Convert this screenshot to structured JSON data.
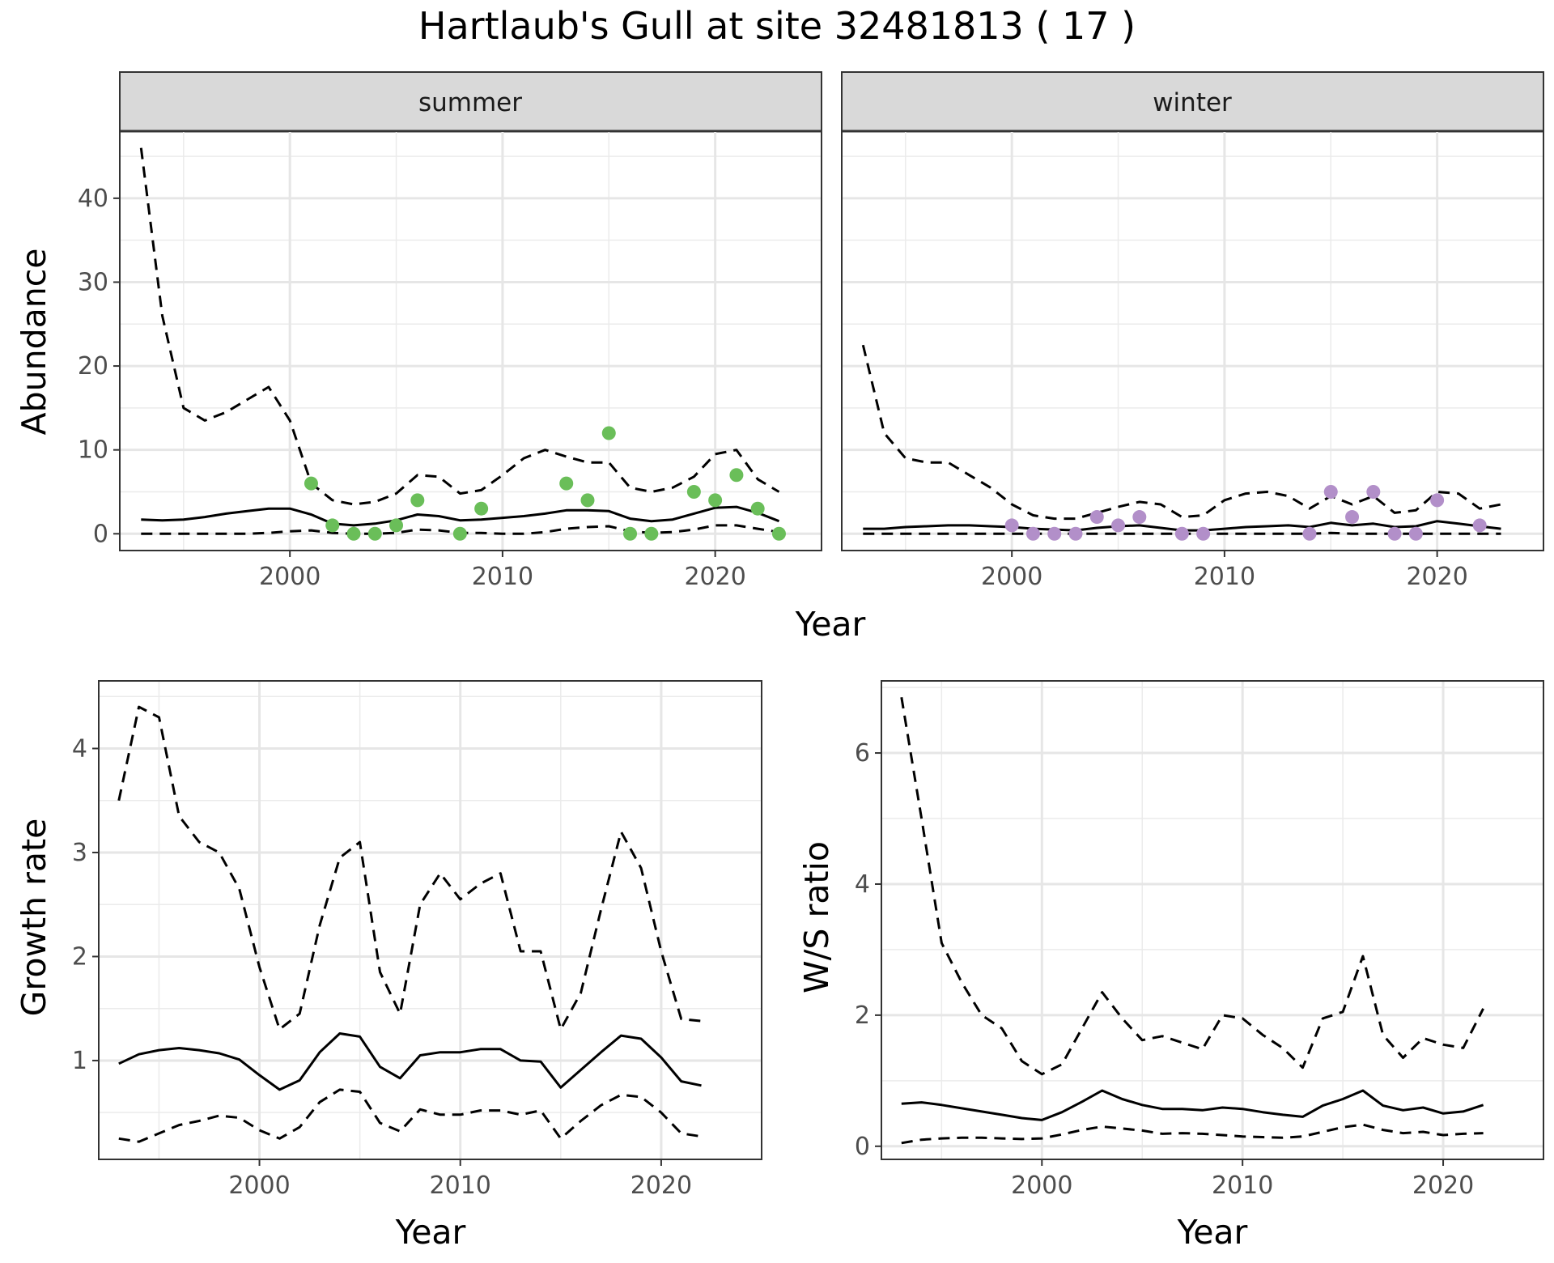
{
  "title": "Hartlaub's Gull at site 32481813 ( 17 )",
  "colors": {
    "summer_points": "#6ABE59",
    "winter_points": "#B28FC9",
    "lines": "#000000"
  },
  "chart_data": [
    {
      "type": "line",
      "facet": "summer",
      "xlabel": "Year",
      "ylabel": "Abundance",
      "xlim": [
        1992,
        2025
      ],
      "ylim": [
        -2,
        48
      ],
      "xticks": [
        2000,
        2010,
        2020
      ],
      "yticks": [
        0,
        10,
        20,
        30,
        40
      ],
      "x": [
        1993,
        1994,
        1995,
        1996,
        1997,
        1998,
        1999,
        2000,
        2001,
        2002,
        2003,
        2004,
        2005,
        2006,
        2007,
        2008,
        2009,
        2010,
        2011,
        2012,
        2013,
        2014,
        2015,
        2016,
        2017,
        2018,
        2019,
        2020,
        2021,
        2022,
        2023
      ],
      "series": [
        {
          "role": "mean",
          "style": "solid",
          "values": [
            1.7,
            1.6,
            1.7,
            2.0,
            2.4,
            2.7,
            3.0,
            3.0,
            2.3,
            1.2,
            1.0,
            1.2,
            1.6,
            2.3,
            2.1,
            1.6,
            1.7,
            1.9,
            2.1,
            2.4,
            2.8,
            2.8,
            2.7,
            1.8,
            1.5,
            1.7,
            2.4,
            3.1,
            3.2,
            2.5,
            1.5
          ]
        },
        {
          "role": "upper",
          "style": "dashed",
          "values": [
            46,
            26,
            15,
            13.5,
            14.5,
            16,
            17.5,
            13.5,
            6,
            4,
            3.5,
            3.8,
            4.8,
            7,
            6.8,
            4.8,
            5.2,
            7,
            9,
            10,
            9.2,
            8.5,
            8.5,
            5.5,
            5,
            5.5,
            6.8,
            9.5,
            10,
            6.5,
            5
          ]
        },
        {
          "role": "lower",
          "style": "dashed",
          "values": [
            0,
            0,
            0,
            0,
            0,
            0,
            0.1,
            0.3,
            0.4,
            0.1,
            0,
            0,
            0.1,
            0.5,
            0.4,
            0.1,
            0.1,
            0,
            0,
            0.2,
            0.6,
            0.8,
            0.9,
            0.3,
            0.1,
            0.2,
            0.5,
            1.0,
            1.0,
            0.6,
            0.2
          ]
        }
      ],
      "points": {
        "x": [
          2001,
          2002,
          2003,
          2004,
          2005,
          2006,
          2008,
          2009,
          2013,
          2014,
          2015,
          2016,
          2017,
          2019,
          2020,
          2021,
          2022,
          2023
        ],
        "y": [
          6,
          1,
          0,
          0,
          1,
          4,
          0,
          3,
          6,
          4,
          12,
          0,
          0,
          5,
          4,
          7,
          3,
          0
        ]
      }
    },
    {
      "type": "line",
      "facet": "winter",
      "xlabel": "Year",
      "ylabel": "Abundance",
      "xlim": [
        1992,
        2025
      ],
      "ylim": [
        -2,
        48
      ],
      "xticks": [
        2000,
        2010,
        2020
      ],
      "yticks": [
        0,
        10,
        20,
        30,
        40
      ],
      "x": [
        1993,
        1994,
        1995,
        1996,
        1997,
        1998,
        1999,
        2000,
        2001,
        2002,
        2003,
        2004,
        2005,
        2006,
        2007,
        2008,
        2009,
        2010,
        2011,
        2012,
        2013,
        2014,
        2015,
        2016,
        2017,
        2018,
        2019,
        2020,
        2021,
        2022,
        2023
      ],
      "series": [
        {
          "role": "mean",
          "style": "solid",
          "values": [
            0.6,
            0.6,
            0.8,
            0.9,
            1.0,
            1.0,
            0.9,
            0.8,
            0.6,
            0.5,
            0.4,
            0.7,
            0.9,
            1.0,
            0.7,
            0.4,
            0.4,
            0.6,
            0.8,
            0.9,
            1.0,
            0.8,
            1.3,
            1.0,
            1.2,
            0.8,
            0.9,
            1.5,
            1.2,
            0.9,
            0.6
          ]
        },
        {
          "role": "upper",
          "style": "dashed",
          "values": [
            22.5,
            12,
            9,
            8.5,
            8.5,
            7,
            5.5,
            3.5,
            2.2,
            1.8,
            1.8,
            2.5,
            3.2,
            3.8,
            3.5,
            2,
            2.2,
            4,
            4.8,
            5,
            4.5,
            3,
            4.5,
            3.5,
            4.5,
            2.5,
            2.8,
            5,
            4.8,
            3,
            3.5
          ]
        },
        {
          "role": "lower",
          "style": "dashed",
          "values": [
            0,
            0,
            0,
            0,
            0,
            0,
            0,
            0,
            0,
            0,
            0,
            0,
            0,
            0,
            0,
            0,
            0,
            0,
            0,
            0,
            0,
            0,
            0.1,
            0,
            0,
            0,
            0,
            0,
            0,
            0,
            0
          ]
        }
      ],
      "points": {
        "x": [
          2000,
          2001,
          2002,
          2003,
          2004,
          2005,
          2006,
          2008,
          2009,
          2014,
          2015,
          2016,
          2017,
          2018,
          2019,
          2020,
          2022
        ],
        "y": [
          1,
          0,
          0,
          0,
          2,
          1,
          2,
          0,
          0,
          0,
          5,
          2,
          5,
          0,
          0,
          4,
          1
        ]
      }
    },
    {
      "type": "line",
      "xlabel": "Year",
      "ylabel": "Growth rate",
      "xlim": [
        1992,
        2025
      ],
      "ylim": [
        0.05,
        4.65
      ],
      "xticks": [
        2000,
        2010,
        2020
      ],
      "yticks": [
        1,
        2,
        3,
        4
      ],
      "x": [
        1993,
        1994,
        1995,
        1996,
        1997,
        1998,
        1999,
        2000,
        2001,
        2002,
        2003,
        2004,
        2005,
        2006,
        2007,
        2008,
        2009,
        2010,
        2011,
        2012,
        2013,
        2014,
        2015,
        2016,
        2017,
        2018,
        2019,
        2020,
        2021,
        2022
      ],
      "series": [
        {
          "role": "mean",
          "style": "solid",
          "values": [
            0.97,
            1.06,
            1.1,
            1.12,
            1.1,
            1.07,
            1.01,
            0.86,
            0.72,
            0.81,
            1.08,
            1.26,
            1.23,
            0.94,
            0.83,
            1.05,
            1.08,
            1.08,
            1.11,
            1.11,
            1.0,
            0.99,
            0.74,
            0.91,
            1.08,
            1.24,
            1.21,
            1.03,
            0.8,
            0.76
          ]
        },
        {
          "role": "upper",
          "style": "dashed",
          "values": [
            3.5,
            4.4,
            4.3,
            3.35,
            3.1,
            3.0,
            2.65,
            1.9,
            1.3,
            1.45,
            2.3,
            2.95,
            3.1,
            1.85,
            1.45,
            2.5,
            2.8,
            2.55,
            2.7,
            2.8,
            2.05,
            2.05,
            1.3,
            1.65,
            2.45,
            3.2,
            2.85,
            2.05,
            1.4,
            1.38
          ]
        },
        {
          "role": "lower",
          "style": "dashed",
          "values": [
            0.25,
            0.22,
            0.3,
            0.38,
            0.42,
            0.47,
            0.45,
            0.33,
            0.25,
            0.36,
            0.6,
            0.72,
            0.7,
            0.4,
            0.32,
            0.53,
            0.48,
            0.48,
            0.52,
            0.52,
            0.48,
            0.52,
            0.25,
            0.42,
            0.57,
            0.67,
            0.65,
            0.5,
            0.3,
            0.27
          ]
        }
      ]
    },
    {
      "type": "line",
      "xlabel": "Year",
      "ylabel": "W/S ratio",
      "xlim": [
        1992,
        2025
      ],
      "ylim": [
        -0.2,
        7.1
      ],
      "xticks": [
        2000,
        2010,
        2020
      ],
      "yticks": [
        0,
        2,
        4,
        6
      ],
      "x": [
        1993,
        1994,
        1995,
        1996,
        1997,
        1998,
        1999,
        2000,
        2001,
        2002,
        2003,
        2004,
        2005,
        2006,
        2007,
        2008,
        2009,
        2010,
        2011,
        2012,
        2013,
        2014,
        2015,
        2016,
        2017,
        2018,
        2019,
        2020,
        2021,
        2022
      ],
      "series": [
        {
          "role": "mean",
          "style": "solid",
          "values": [
            0.65,
            0.67,
            0.63,
            0.58,
            0.53,
            0.48,
            0.43,
            0.4,
            0.52,
            0.68,
            0.85,
            0.72,
            0.63,
            0.57,
            0.57,
            0.55,
            0.59,
            0.57,
            0.52,
            0.48,
            0.45,
            0.62,
            0.72,
            0.85,
            0.62,
            0.55,
            0.59,
            0.5,
            0.53,
            0.63
          ]
        },
        {
          "role": "upper",
          "style": "dashed",
          "values": [
            6.85,
            5.0,
            3.1,
            2.5,
            2.0,
            1.8,
            1.3,
            1.1,
            1.25,
            1.8,
            2.35,
            1.95,
            1.62,
            1.68,
            1.58,
            1.48,
            2.0,
            1.95,
            1.7,
            1.5,
            1.2,
            1.95,
            2.05,
            2.9,
            1.7,
            1.35,
            1.65,
            1.55,
            1.5,
            2.1
          ]
        },
        {
          "role": "lower",
          "style": "dashed",
          "values": [
            0.05,
            0.1,
            0.12,
            0.13,
            0.13,
            0.12,
            0.11,
            0.12,
            0.18,
            0.25,
            0.3,
            0.27,
            0.24,
            0.19,
            0.2,
            0.19,
            0.17,
            0.15,
            0.14,
            0.13,
            0.15,
            0.22,
            0.29,
            0.33,
            0.25,
            0.2,
            0.22,
            0.17,
            0.19,
            0.2
          ]
        }
      ]
    }
  ]
}
